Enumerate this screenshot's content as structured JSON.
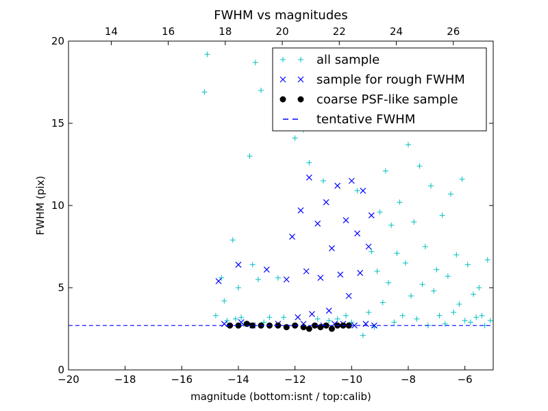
{
  "chart_data": {
    "type": "scatter",
    "title": "FWHM vs magnitudes",
    "xlabel": "magnitude (bottom:isnt / top:calib)",
    "ylabel": "FWHM (pix)",
    "xlim": [
      -20,
      -5
    ],
    "ylim": [
      0,
      20
    ],
    "top_xlim": [
      12.5,
      27.4
    ],
    "grid": false,
    "legend_position": "top-right",
    "x_ticks": [
      -20,
      -18,
      -16,
      -14,
      -12,
      -10,
      -8,
      -6
    ],
    "x_tick_labels": [
      "−20",
      "−18",
      "−16",
      "−14",
      "−12",
      "−10",
      "−8",
      "−6"
    ],
    "y_ticks": [
      0,
      5,
      10,
      15,
      20
    ],
    "y_tick_labels": [
      "0",
      "5",
      "10",
      "15",
      "20"
    ],
    "top_x_ticks": [
      14,
      16,
      18,
      20,
      22,
      24,
      26
    ],
    "top_x_tick_labels": [
      "14",
      "16",
      "18",
      "20",
      "22",
      "24",
      "26"
    ],
    "series": [
      {
        "name": "all sample",
        "marker": "plus",
        "color": "#00bfbf",
        "x": [
          -15.2,
          -15.1,
          -14.8,
          -14.6,
          -14.5,
          -14.4,
          -14.2,
          -14.1,
          -14.0,
          -13.9,
          -13.8,
          -13.6,
          -13.5,
          -13.4,
          -13.3,
          -13.2,
          -13.1,
          -12.9,
          -12.6,
          -12.4,
          -12.0,
          -11.7,
          -11.5,
          -11.2,
          -11.0,
          -10.8,
          -10.5,
          -10.2,
          -10.0,
          -9.8,
          -9.6,
          -9.4,
          -9.3,
          -9.2,
          -9.1,
          -9.0,
          -8.9,
          -8.8,
          -8.7,
          -8.6,
          -8.5,
          -8.4,
          -8.3,
          -8.2,
          -8.1,
          -8.0,
          -7.9,
          -7.8,
          -7.7,
          -7.6,
          -7.5,
          -7.4,
          -7.3,
          -7.2,
          -7.1,
          -7.0,
          -6.9,
          -6.8,
          -6.7,
          -6.6,
          -6.5,
          -6.4,
          -6.3,
          -6.2,
          -6.1,
          -6.0,
          -5.9,
          -5.8,
          -5.7,
          -5.6,
          -5.5,
          -5.4,
          -5.3,
          -5.2,
          -5.1
        ],
        "y": [
          16.9,
          19.2,
          3.3,
          5.6,
          4.2,
          3.0,
          7.9,
          3.1,
          5.0,
          3.2,
          2.8,
          13.0,
          6.4,
          18.7,
          5.5,
          17.0,
          2.9,
          3.2,
          5.6,
          3.2,
          14.1,
          14.6,
          12.6,
          3.1,
          11.5,
          3.0,
          3.1,
          3.3,
          2.9,
          10.9,
          2.1,
          3.5,
          7.2,
          2.6,
          6.0,
          9.6,
          4.1,
          12.1,
          5.3,
          8.8,
          2.9,
          7.1,
          10.2,
          3.3,
          6.5,
          13.7,
          4.5,
          9.0,
          3.1,
          12.4,
          5.2,
          7.5,
          2.7,
          11.2,
          4.8,
          6.1,
          3.3,
          9.4,
          2.8,
          5.7,
          10.7,
          3.5,
          7.0,
          4.0,
          11.6,
          3.0,
          6.4,
          2.9,
          4.6,
          3.2,
          5.0,
          3.3,
          2.7,
          6.7,
          3.0
        ]
      },
      {
        "name": "sample for rough FWHM",
        "marker": "x",
        "color": "#0000ff",
        "x": [
          -14.7,
          -14.5,
          -14.0,
          -13.9,
          -13.5,
          -13.0,
          -12.6,
          -12.3,
          -12.1,
          -11.9,
          -11.8,
          -11.7,
          -11.6,
          -11.5,
          -11.4,
          -11.2,
          -11.1,
          -11.0,
          -10.9,
          -10.8,
          -10.7,
          -10.6,
          -10.5,
          -10.4,
          -10.3,
          -10.2,
          -10.1,
          -10.0,
          -9.9,
          -9.8,
          -9.7,
          -9.6,
          -9.5,
          -9.4,
          -9.3,
          -9.2
        ],
        "y": [
          5.4,
          2.8,
          6.4,
          2.9,
          2.7,
          6.1,
          2.8,
          5.5,
          8.1,
          3.2,
          9.7,
          2.8,
          6.0,
          11.7,
          3.4,
          8.9,
          5.6,
          2.7,
          10.2,
          3.6,
          7.4,
          2.8,
          11.2,
          5.8,
          2.8,
          9.1,
          4.5,
          11.5,
          2.7,
          8.3,
          5.9,
          10.9,
          2.8,
          7.5,
          9.4,
          2.7
        ]
      },
      {
        "name": "coarse PSF-like sample",
        "marker": "circle",
        "color": "#000000",
        "x": [
          -14.3,
          -14.0,
          -13.7,
          -13.5,
          -13.2,
          -12.9,
          -12.6,
          -12.3,
          -12.0,
          -11.7,
          -11.5,
          -11.3,
          -11.1,
          -10.9,
          -10.7,
          -10.5,
          -10.3,
          -10.1
        ],
        "y": [
          2.7,
          2.7,
          2.8,
          2.7,
          2.7,
          2.7,
          2.7,
          2.6,
          2.7,
          2.6,
          2.5,
          2.7,
          2.6,
          2.7,
          2.5,
          2.7,
          2.7,
          2.7
        ]
      }
    ],
    "reference_lines": [
      {
        "name": "tentative FWHM",
        "style": "dashed",
        "color": "#0000ff",
        "y": 2.7
      }
    ],
    "legend": [
      {
        "label": "all sample",
        "marker": "plus",
        "color": "#00bfbf"
      },
      {
        "label": "sample for rough FWHM",
        "marker": "x",
        "color": "#0000ff"
      },
      {
        "label": "coarse PSF-like sample",
        "marker": "circle",
        "color": "#000000"
      },
      {
        "label": "tentative FWHM",
        "marker": "dash",
        "color": "#0000ff"
      }
    ]
  }
}
